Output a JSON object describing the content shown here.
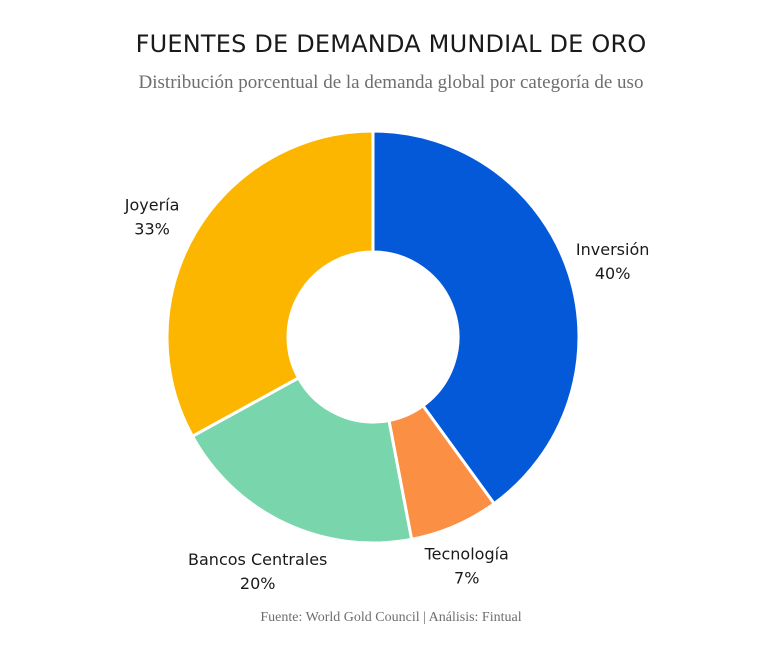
{
  "chart_data": {
    "type": "pie",
    "title": "FUENTES DE DEMANDA MUNDIAL DE ORO",
    "subtitle": "Distribución porcentual de la demanda global por categoría de uso",
    "source": "Fuente: World Gold Council | Análisis: Fintual",
    "slices": [
      {
        "label": "Inversión",
        "value": 40,
        "value_label": "40%",
        "color": "#0459d8"
      },
      {
        "label": "Tecnología",
        "value": 7,
        "value_label": "7%",
        "color": "#fb8f44"
      },
      {
        "label": "Bancos Centrales",
        "value": 20,
        "value_label": "20%",
        "color": "#78d5ac"
      },
      {
        "label": "Joyería",
        "value": 33,
        "value_label": "33%",
        "color": "#fdb600"
      }
    ]
  }
}
